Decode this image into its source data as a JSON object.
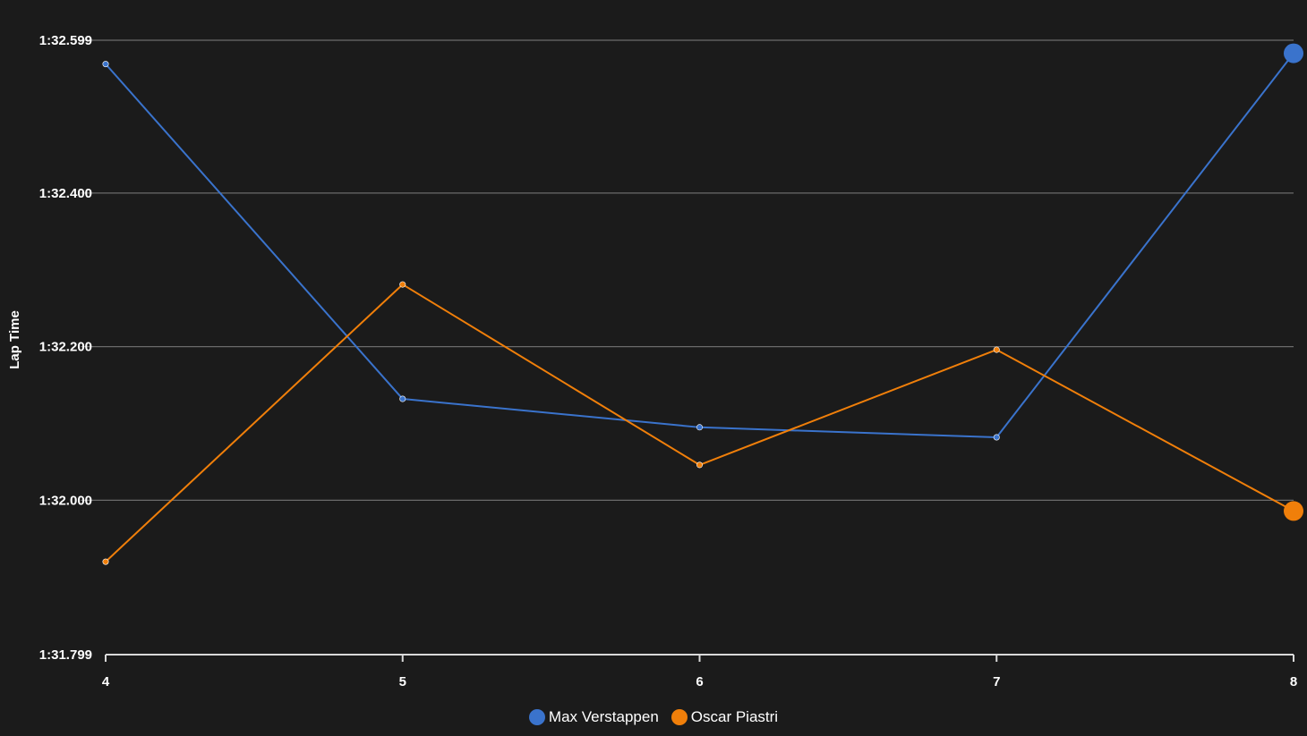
{
  "chart_data": {
    "type": "line",
    "ylabel": "Lap Time",
    "xlabel": "",
    "x": [
      4,
      5,
      6,
      7,
      8
    ],
    "x_tick_labels": [
      "4",
      "5",
      "6",
      "7",
      "8"
    ],
    "ylim": [
      91.799,
      92.599
    ],
    "y_ticks": [
      91.799,
      92.0,
      92.2,
      92.4,
      92.599
    ],
    "y_tick_labels": [
      "1:31.799",
      "1:32.000",
      "1:32.200",
      "1:32.400",
      "1:32.599"
    ],
    "grid": true,
    "legend_position": "bottom-center",
    "series": [
      {
        "name": "Max Verstappen",
        "color": "#3a73cc",
        "values": [
          92.568,
          92.132,
          92.095,
          92.082,
          92.582
        ]
      },
      {
        "name": "Oscar Piastri",
        "color": "#f07f0a",
        "values": [
          91.92,
          92.281,
          92.046,
          92.196,
          91.986
        ]
      }
    ]
  }
}
